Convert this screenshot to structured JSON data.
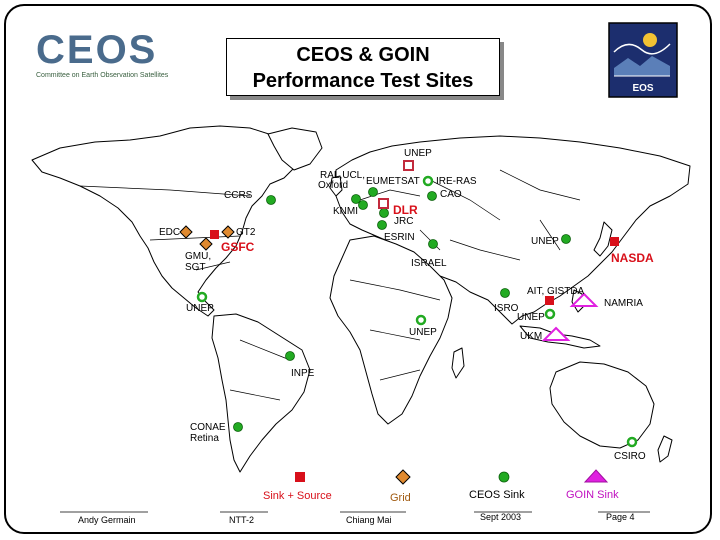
{
  "title": {
    "line1": "CEOS & GOIN",
    "line2": "Performance Test Sites"
  },
  "logo": {
    "text": "CEOS",
    "subtitle": "Committee on Earth Observation Satellites"
  },
  "eos_logo": {
    "text": "EOS"
  },
  "sites": {
    "unep_europe": "UNEP",
    "ral": "RAL,UCL,",
    "oxford": "Oxford",
    "eumetsat": "EUMETSAT",
    "ire_ras": "IRE-RAS",
    "cao": "CAO",
    "ccrs": "CCRS",
    "knmi": "KNMI",
    "dlr": "DLR",
    "jrc": "JRC",
    "esrin": "ESRIN",
    "edc": "EDC",
    "gt2": "GT2",
    "gsfc": "GSFC",
    "gmu": "GMU,",
    "sgt": "SGT",
    "unep_asia": "UNEP",
    "nasda": "NASDA",
    "israel": "ISRAEL",
    "ait": "AIT, GISTDA",
    "namria": "NAMRIA",
    "unep_americas": "UNEP",
    "isro": "ISRO",
    "unep_india": "UNEP",
    "unep_africa": "UNEP",
    "ukm": "UKM",
    "inpe": "INPE",
    "conae": "CONAE",
    "retina": "Retina",
    "csiro": "CSIRO"
  },
  "legend": {
    "sink_source": "Sink + Source",
    "grid": "Grid",
    "ceos_sink": "CEOS Sink",
    "goin_sink": "GOIN Sink"
  },
  "footer": {
    "author": "Andy Germain",
    "event": "NTT-2",
    "location": "Chiang Mai",
    "date": "Sept 2003",
    "page": "Page 4"
  },
  "colors": {
    "sink_source": "#d8101a",
    "grid": "#e08a30",
    "ceos_sink": "#22aa22",
    "goin_sink": "#e020e0",
    "logo_blue": "#4a6b8c"
  }
}
